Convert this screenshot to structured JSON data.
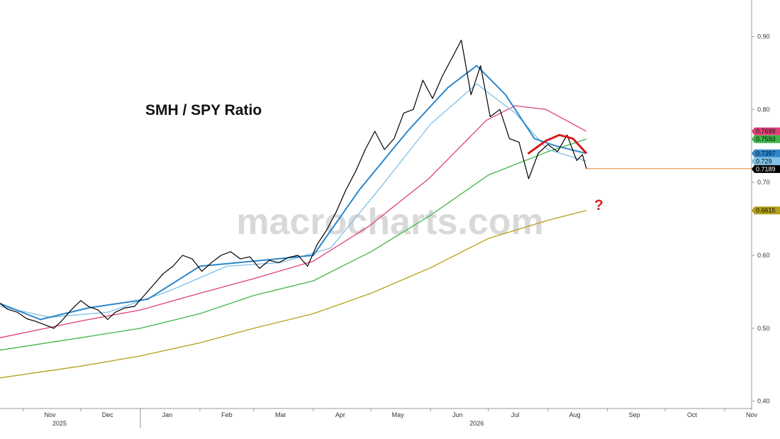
{
  "chart_data": {
    "type": "line",
    "title": "SMH / SPY Ratio",
    "watermark": "macrocharts.com",
    "annotation": "?",
    "x_tick_labels": [
      "Nov",
      "Dec",
      "Jan",
      "Feb",
      "Mar",
      "Apr",
      "May",
      "Jun",
      "Jul",
      "Aug",
      "Sep",
      "Oct",
      "Nov"
    ],
    "year_labels": [
      "2025",
      "2026"
    ],
    "x_range": [
      "2025-10-20",
      "2026-11-15"
    ],
    "ylim": [
      0.39,
      0.95
    ],
    "y_ticks": [
      "0.90",
      "0.80",
      "0.70",
      "0.60",
      "0.50",
      "0.40"
    ],
    "grid": false,
    "current_level_line": {
      "value": 0.7189,
      "color": "#e08a2a",
      "from": "2026-08-21"
    },
    "series": [
      {
        "color": "#000000",
        "last_label": "0.7189",
        "points": [
          [
            "2025-10-20",
            0.534
          ],
          [
            "2025-10-24",
            0.526
          ],
          [
            "2025-10-29",
            0.522
          ],
          [
            "2025-11-03",
            0.513
          ],
          [
            "2025-11-07",
            0.51
          ],
          [
            "2025-11-12",
            0.505
          ],
          [
            "2025-11-17",
            0.5
          ],
          [
            "2025-11-21",
            0.51
          ],
          [
            "2025-11-26",
            0.525
          ],
          [
            "2025-12-01",
            0.538
          ],
          [
            "2025-12-05",
            0.53
          ],
          [
            "2025-12-10",
            0.525
          ],
          [
            "2025-12-15",
            0.512
          ],
          [
            "2025-12-19",
            0.522
          ],
          [
            "2025-12-24",
            0.528
          ],
          [
            "2025-12-29",
            0.53
          ],
          [
            "2026-01-03",
            0.545
          ],
          [
            "2026-01-08",
            0.56
          ],
          [
            "2026-01-13",
            0.575
          ],
          [
            "2026-01-18",
            0.585
          ],
          [
            "2026-01-23",
            0.6
          ],
          [
            "2026-01-28",
            0.595
          ],
          [
            "2026-02-02",
            0.578
          ],
          [
            "2026-02-07",
            0.59
          ],
          [
            "2026-02-12",
            0.6
          ],
          [
            "2026-02-17",
            0.605
          ],
          [
            "2026-02-22",
            0.595
          ],
          [
            "2026-02-27",
            0.598
          ],
          [
            "2026-03-04",
            0.582
          ],
          [
            "2026-03-09",
            0.593
          ],
          [
            "2026-03-14",
            0.59
          ],
          [
            "2026-03-19",
            0.597
          ],
          [
            "2026-03-24",
            0.6
          ],
          [
            "2026-03-29",
            0.585
          ],
          [
            "2026-04-03",
            0.615
          ],
          [
            "2026-04-08",
            0.635
          ],
          [
            "2026-04-13",
            0.66
          ],
          [
            "2026-04-18",
            0.69
          ],
          [
            "2026-04-23",
            0.715
          ],
          [
            "2026-04-28",
            0.745
          ],
          [
            "2026-05-03",
            0.77
          ],
          [
            "2026-05-08",
            0.745
          ],
          [
            "2026-05-13",
            0.76
          ],
          [
            "2026-05-18",
            0.795
          ],
          [
            "2026-05-23",
            0.8
          ],
          [
            "2026-05-28",
            0.84
          ],
          [
            "2026-06-02",
            0.815
          ],
          [
            "2026-06-07",
            0.845
          ],
          [
            "2026-06-12",
            0.87
          ],
          [
            "2026-06-17",
            0.895
          ],
          [
            "2026-06-22",
            0.82
          ],
          [
            "2026-06-27",
            0.86
          ],
          [
            "2026-07-02",
            0.79
          ],
          [
            "2026-07-07",
            0.8
          ],
          [
            "2026-07-12",
            0.76
          ],
          [
            "2026-07-17",
            0.755
          ],
          [
            "2026-07-22",
            0.705
          ],
          [
            "2026-07-27",
            0.74
          ],
          [
            "2026-08-01",
            0.752
          ],
          [
            "2026-08-06",
            0.742
          ],
          [
            "2026-08-11",
            0.765
          ],
          [
            "2026-08-16",
            0.73
          ],
          [
            "2026-08-19",
            0.738
          ],
          [
            "2026-08-21",
            0.7189
          ]
        ]
      },
      {
        "color": "#2e86c9",
        "last_label": "0.7397",
        "points": [
          [
            "2025-10-20",
            0.534
          ],
          [
            "2025-11-10",
            0.512
          ],
          [
            "2025-12-05",
            0.528
          ],
          [
            "2026-01-05",
            0.54
          ],
          [
            "2026-02-01",
            0.585
          ],
          [
            "2026-03-01",
            0.592
          ],
          [
            "2026-04-01",
            0.6
          ],
          [
            "2026-04-25",
            0.69
          ],
          [
            "2026-05-20",
            0.77
          ],
          [
            "2026-06-10",
            0.83
          ],
          [
            "2026-06-25",
            0.86
          ],
          [
            "2026-07-10",
            0.82
          ],
          [
            "2026-07-25",
            0.76
          ],
          [
            "2026-08-05",
            0.75
          ],
          [
            "2026-08-21",
            0.7397
          ]
        ]
      },
      {
        "color": "#7fc1e8",
        "last_label": "0.729",
        "points": [
          [
            "2025-10-20",
            0.53
          ],
          [
            "2025-11-15",
            0.515
          ],
          [
            "2025-12-15",
            0.522
          ],
          [
            "2026-01-15",
            0.55
          ],
          [
            "2026-02-15",
            0.585
          ],
          [
            "2026-03-15",
            0.59
          ],
          [
            "2026-04-10",
            0.61
          ],
          [
            "2026-05-05",
            0.69
          ],
          [
            "2026-06-01",
            0.78
          ],
          [
            "2026-06-25",
            0.835
          ],
          [
            "2026-07-15",
            0.795
          ],
          [
            "2026-08-01",
            0.745
          ],
          [
            "2026-08-21",
            0.729
          ]
        ]
      },
      {
        "color": "#e0407a",
        "last_label": "0.7699",
        "points": [
          [
            "2025-10-20",
            0.487
          ],
          [
            "2025-12-01",
            0.51
          ],
          [
            "2026-01-01",
            0.525
          ],
          [
            "2026-02-01",
            0.548
          ],
          [
            "2026-03-01",
            0.568
          ],
          [
            "2026-04-01",
            0.592
          ],
          [
            "2026-04-30",
            0.64
          ],
          [
            "2026-05-31",
            0.705
          ],
          [
            "2026-06-30",
            0.785
          ],
          [
            "2026-07-15",
            0.805
          ],
          [
            "2026-07-31",
            0.8
          ],
          [
            "2026-08-21",
            0.7699
          ]
        ]
      },
      {
        "color": "#3fb64a",
        "last_label": "0.7593",
        "points": [
          [
            "2025-10-20",
            0.47
          ],
          [
            "2025-12-01",
            0.487
          ],
          [
            "2026-01-01",
            0.5
          ],
          [
            "2026-02-01",
            0.52
          ],
          [
            "2026-03-01",
            0.545
          ],
          [
            "2026-04-01",
            0.565
          ],
          [
            "2026-05-01",
            0.605
          ],
          [
            "2026-06-01",
            0.655
          ],
          [
            "2026-07-01",
            0.71
          ],
          [
            "2026-08-01",
            0.742
          ],
          [
            "2026-08-21",
            0.7593
          ]
        ]
      },
      {
        "color": "#b5a019",
        "last_label": "0.6615",
        "points": [
          [
            "2025-10-20",
            0.432
          ],
          [
            "2025-12-01",
            0.448
          ],
          [
            "2026-01-01",
            0.462
          ],
          [
            "2026-02-01",
            0.48
          ],
          [
            "2026-03-01",
            0.5
          ],
          [
            "2026-04-01",
            0.52
          ],
          [
            "2026-05-01",
            0.548
          ],
          [
            "2026-06-01",
            0.583
          ],
          [
            "2026-07-01",
            0.623
          ],
          [
            "2026-08-01",
            0.648
          ],
          [
            "2026-08-21",
            0.6615
          ]
        ]
      }
    ],
    "arc_annotation": {
      "color": "#d41a1a",
      "points": [
        [
          "2026-07-22",
          0.74
        ],
        [
          "2026-07-31",
          0.757
        ],
        [
          "2026-08-07",
          0.765
        ],
        [
          "2026-08-14",
          0.76
        ],
        [
          "2026-08-21",
          0.74
        ]
      ]
    }
  }
}
